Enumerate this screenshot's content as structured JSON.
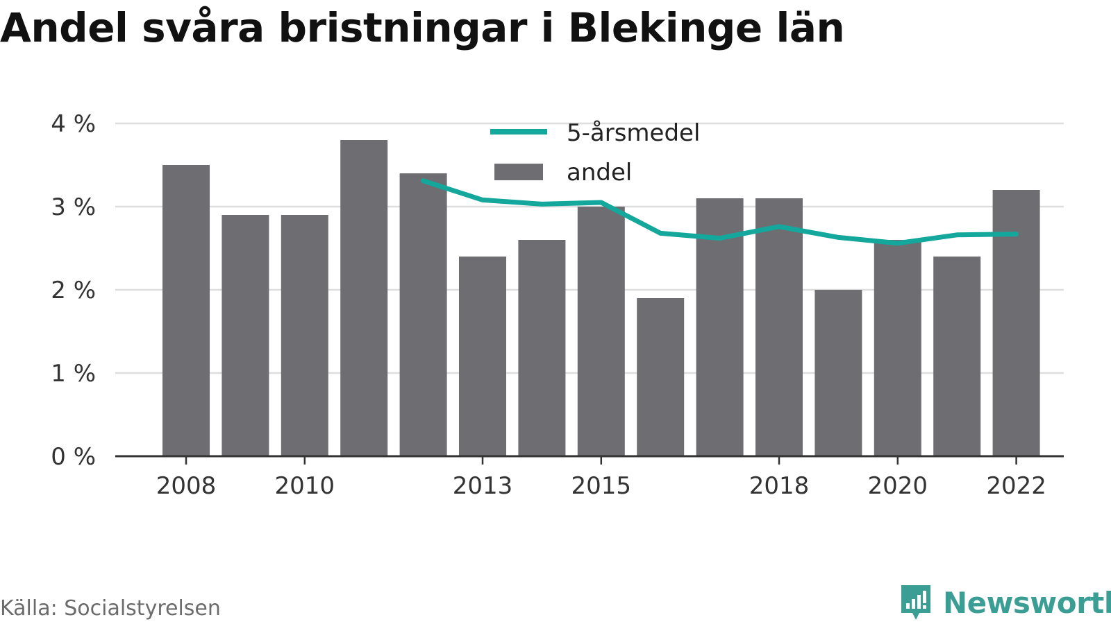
{
  "title": "Andel svåra bristningar i Blekinge län",
  "source": "Källa: Socialstyrelsen",
  "brand": {
    "name": "Newsworthy",
    "icon": "newsworthy-logo-icon"
  },
  "colors": {
    "bar": "#6e6d72",
    "line": "#14a79c",
    "grid": "#dddddd",
    "axis": "#333333",
    "brand": "#3a9e94"
  },
  "chart_data": {
    "type": "bar",
    "title": "Andel svåra bristningar i Blekinge län",
    "xlabel": "",
    "ylabel": "",
    "ylim": [
      0,
      4
    ],
    "grid": true,
    "legend_position": "top-center",
    "categories": [
      "2008",
      "2009",
      "2010",
      "2011",
      "2012",
      "2013",
      "2014",
      "2015",
      "2016",
      "2017",
      "2018",
      "2019",
      "2020",
      "2021",
      "2022"
    ],
    "x_tick_labels": [
      "2008",
      "2010",
      "2013",
      "2015",
      "2018",
      "2020",
      "2022"
    ],
    "y_ticks": [
      0,
      1,
      2,
      3,
      4
    ],
    "y_tick_labels": [
      "0 %",
      "1 %",
      "2 %",
      "3 %",
      "4 %"
    ],
    "series": [
      {
        "name": "andel",
        "type": "bar",
        "values": [
          3.5,
          2.9,
          2.9,
          3.8,
          3.4,
          2.4,
          2.6,
          3.0,
          1.9,
          3.1,
          3.1,
          2.0,
          2.6,
          2.4,
          3.2
        ]
      },
      {
        "name": "5-årsmedel",
        "type": "line",
        "values": [
          null,
          null,
          null,
          null,
          3.31,
          3.08,
          3.03,
          3.05,
          2.68,
          2.62,
          2.76,
          2.63,
          2.56,
          2.66,
          2.67
        ]
      }
    ]
  }
}
